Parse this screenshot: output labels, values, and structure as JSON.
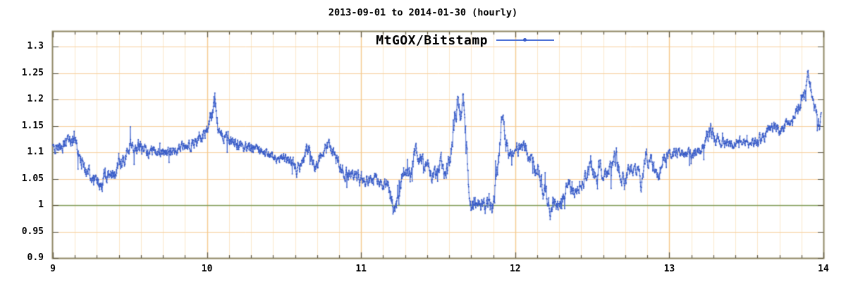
{
  "title": "2013-09-01 to 2014-01-30 (hourly)",
  "legend": {
    "label": "MtGOX/Bitstamp"
  },
  "colors": {
    "series_line": "#3e63cf",
    "series_point": "#3457c4",
    "grid_minor": "#fbe7ca",
    "grid_major_h": "#f7d09e",
    "grid_major_v": "#f5c98c",
    "baseline_green": "#86a05e",
    "border": "#8e8663",
    "tick_mark": "#5a523c",
    "text": "#000000",
    "background": "#ffffff"
  },
  "chart_data": {
    "type": "line",
    "title": "2013-09-01 to 2014-01-30 (hourly)",
    "series": [
      {
        "name": "MtGOX/Bitstamp",
        "style": "linespoints",
        "color": "#3e63cf"
      }
    ],
    "sampling": "hourly ratio MtGOX/Bitstamp; rendered from anchor points below plus small deterministic hourly jitter",
    "x_axis": {
      "unit": "month number (9=Sep 2013 ... 14=Feb 2014)",
      "min": 9,
      "max": 14,
      "major_ticks": [
        9,
        10,
        11,
        12,
        13,
        14
      ],
      "tick_labels": [
        "9",
        "10",
        "11",
        "12",
        "13",
        "14"
      ],
      "minor_divisions": 7,
      "grid": true
    },
    "y_axis": {
      "min": 0.9,
      "max": 1.328,
      "tick_step": 0.05,
      "major_ticks": [
        0.9,
        0.95,
        1.0,
        1.05,
        1.1,
        1.15,
        1.2,
        1.25,
        1.3
      ],
      "tick_labels": [
        "0.9",
        "0.95",
        "1",
        "1.05",
        "1.1",
        "1.15",
        "1.2",
        "1.25",
        "1.3"
      ],
      "grid": true,
      "baseline": 1.0
    },
    "legend_position": "top-center-inside",
    "anchors": [
      [
        9.0,
        1.113,
        0.009
      ],
      [
        9.03,
        1.108,
        0.009
      ],
      [
        9.06,
        1.112,
        0.01
      ],
      [
        9.09,
        1.118,
        0.01
      ],
      [
        9.12,
        1.121,
        0.011
      ],
      [
        9.14,
        1.124,
        0.01
      ],
      [
        9.16,
        1.108,
        0.01
      ],
      [
        9.18,
        1.092,
        0.011
      ],
      [
        9.2,
        1.072,
        0.012
      ],
      [
        9.23,
        1.062,
        0.012
      ],
      [
        9.26,
        1.052,
        0.012
      ],
      [
        9.29,
        1.046,
        0.013
      ],
      [
        9.32,
        1.038,
        0.015
      ],
      [
        9.34,
        1.052,
        0.014
      ],
      [
        9.36,
        1.062,
        0.012
      ],
      [
        9.39,
        1.054,
        0.012
      ],
      [
        9.41,
        1.052,
        0.012
      ],
      [
        9.43,
        1.08,
        0.015
      ],
      [
        9.45,
        1.07,
        0.012
      ],
      [
        9.47,
        1.09,
        0.012
      ],
      [
        9.5,
        1.108,
        0.012
      ],
      [
        9.52,
        1.108,
        0.011
      ],
      [
        9.54,
        1.11,
        0.012
      ],
      [
        9.56,
        1.112,
        0.011
      ],
      [
        9.59,
        1.103,
        0.01
      ],
      [
        9.62,
        1.1,
        0.009
      ],
      [
        9.65,
        1.103,
        0.008
      ],
      [
        9.68,
        1.101,
        0.008
      ],
      [
        9.71,
        1.1,
        0.008
      ],
      [
        9.74,
        1.098,
        0.008
      ],
      [
        9.77,
        1.101,
        0.008
      ],
      [
        9.8,
        1.104,
        0.008
      ],
      [
        9.83,
        1.107,
        0.008
      ],
      [
        9.86,
        1.11,
        0.009
      ],
      [
        9.89,
        1.112,
        0.009
      ],
      [
        9.92,
        1.12,
        0.01
      ],
      [
        9.95,
        1.129,
        0.01
      ],
      [
        9.98,
        1.137,
        0.01
      ],
      [
        10.01,
        1.145,
        0.011
      ],
      [
        10.035,
        1.168,
        0.018
      ],
      [
        10.05,
        1.205,
        0.01
      ],
      [
        10.065,
        1.165,
        0.014
      ],
      [
        10.08,
        1.138,
        0.012
      ],
      [
        10.11,
        1.131,
        0.01
      ],
      [
        10.14,
        1.121,
        0.01
      ],
      [
        10.17,
        1.123,
        0.01
      ],
      [
        10.2,
        1.116,
        0.01
      ],
      [
        10.24,
        1.111,
        0.009
      ],
      [
        10.28,
        1.108,
        0.009
      ],
      [
        10.32,
        1.105,
        0.008
      ],
      [
        10.36,
        1.102,
        0.008
      ],
      [
        10.4,
        1.097,
        0.008
      ],
      [
        10.44,
        1.093,
        0.008
      ],
      [
        10.48,
        1.088,
        0.008
      ],
      [
        10.52,
        1.084,
        0.009
      ],
      [
        10.55,
        1.08,
        0.01
      ],
      [
        10.58,
        1.068,
        0.012
      ],
      [
        10.61,
        1.08,
        0.012
      ],
      [
        10.635,
        1.095,
        0.011
      ],
      [
        10.66,
        1.112,
        0.01
      ],
      [
        10.68,
        1.085,
        0.012
      ],
      [
        10.7,
        1.067,
        0.012
      ],
      [
        10.73,
        1.08,
        0.012
      ],
      [
        10.76,
        1.098,
        0.012
      ],
      [
        10.785,
        1.113,
        0.011
      ],
      [
        10.81,
        1.105,
        0.012
      ],
      [
        10.84,
        1.087,
        0.012
      ],
      [
        10.87,
        1.071,
        0.011
      ],
      [
        10.9,
        1.061,
        0.01
      ],
      [
        10.94,
        1.056,
        0.01
      ],
      [
        10.98,
        1.054,
        0.01
      ],
      [
        11.02,
        1.051,
        0.01
      ],
      [
        11.06,
        1.049,
        0.01
      ],
      [
        11.1,
        1.049,
        0.01
      ],
      [
        11.14,
        1.045,
        0.01
      ],
      [
        11.17,
        1.036,
        0.012
      ],
      [
        11.195,
        1.01,
        0.015
      ],
      [
        11.215,
        0.984,
        0.012
      ],
      [
        11.235,
        1.018,
        0.016
      ],
      [
        11.26,
        1.048,
        0.014
      ],
      [
        11.28,
        1.066,
        0.012
      ],
      [
        11.305,
        1.06,
        0.012
      ],
      [
        11.33,
        1.076,
        0.013
      ],
      [
        11.35,
        1.096,
        0.014
      ],
      [
        11.37,
        1.1,
        0.012
      ],
      [
        11.39,
        1.09,
        0.012
      ],
      [
        11.415,
        1.079,
        0.012
      ],
      [
        11.44,
        1.071,
        0.012
      ],
      [
        11.46,
        1.058,
        0.012
      ],
      [
        11.48,
        1.054,
        0.012
      ],
      [
        11.5,
        1.066,
        0.012
      ],
      [
        11.52,
        1.078,
        0.012
      ],
      [
        11.54,
        1.058,
        0.013
      ],
      [
        11.56,
        1.07,
        0.014
      ],
      [
        11.58,
        1.098,
        0.018
      ],
      [
        11.6,
        1.148,
        0.022
      ],
      [
        11.615,
        1.18,
        0.02
      ],
      [
        11.63,
        1.2,
        0.013
      ],
      [
        11.645,
        1.17,
        0.018
      ],
      [
        11.66,
        1.2,
        0.013
      ],
      [
        11.67,
        1.183,
        0.018
      ],
      [
        11.68,
        1.12,
        0.026
      ],
      [
        11.695,
        1.042,
        0.022
      ],
      [
        11.71,
        1.008,
        0.016
      ],
      [
        11.73,
        1.0,
        0.014
      ],
      [
        11.75,
        1.016,
        0.014
      ],
      [
        11.77,
        0.994,
        0.013
      ],
      [
        11.79,
        1.0,
        0.013
      ],
      [
        11.81,
        0.988,
        0.012
      ],
      [
        11.83,
        1.007,
        0.013
      ],
      [
        11.85,
        0.996,
        0.012
      ],
      [
        11.865,
        1.016,
        0.013
      ],
      [
        11.88,
        1.058,
        0.015
      ],
      [
        11.895,
        1.092,
        0.015
      ],
      [
        11.91,
        1.16,
        0.018
      ],
      [
        11.92,
        1.183,
        0.011
      ],
      [
        11.935,
        1.128,
        0.018
      ],
      [
        11.95,
        1.11,
        0.013
      ],
      [
        11.975,
        1.098,
        0.012
      ],
      [
        12.0,
        1.11,
        0.012
      ],
      [
        12.03,
        1.103,
        0.011
      ],
      [
        12.06,
        1.11,
        0.011
      ],
      [
        12.09,
        1.093,
        0.011
      ],
      [
        12.12,
        1.076,
        0.013
      ],
      [
        12.15,
        1.066,
        0.013
      ],
      [
        12.18,
        1.034,
        0.015
      ],
      [
        12.21,
        1.004,
        0.015
      ],
      [
        12.235,
        0.986,
        0.013
      ],
      [
        12.26,
        1.004,
        0.015
      ],
      [
        12.28,
        0.994,
        0.013
      ],
      [
        12.3,
        1.004,
        0.013
      ],
      [
        12.325,
        1.026,
        0.012
      ],
      [
        12.35,
        1.034,
        0.011
      ],
      [
        12.38,
        1.029,
        0.012
      ],
      [
        12.41,
        1.031,
        0.013
      ],
      [
        12.44,
        1.046,
        0.012
      ],
      [
        12.47,
        1.06,
        0.013
      ],
      [
        12.49,
        1.082,
        0.018
      ],
      [
        12.52,
        1.056,
        0.013
      ],
      [
        12.55,
        1.07,
        0.015
      ],
      [
        12.575,
        1.062,
        0.012
      ],
      [
        12.6,
        1.068,
        0.012
      ],
      [
        12.63,
        1.073,
        0.013
      ],
      [
        12.655,
        1.09,
        0.018
      ],
      [
        12.68,
        1.053,
        0.013
      ],
      [
        12.71,
        1.04,
        0.013
      ],
      [
        12.74,
        1.068,
        0.013
      ],
      [
        12.77,
        1.07,
        0.011
      ],
      [
        12.8,
        1.062,
        0.011
      ],
      [
        12.82,
        1.042,
        0.013
      ],
      [
        12.85,
        1.095,
        0.013
      ],
      [
        12.88,
        1.083,
        0.011
      ],
      [
        12.91,
        1.057,
        0.011
      ],
      [
        12.935,
        1.052,
        0.011
      ],
      [
        12.96,
        1.092,
        0.011
      ],
      [
        12.99,
        1.098,
        0.009
      ],
      [
        13.03,
        1.096,
        0.009
      ],
      [
        13.07,
        1.099,
        0.008
      ],
      [
        13.11,
        1.092,
        0.008
      ],
      [
        13.15,
        1.097,
        0.008
      ],
      [
        13.18,
        1.104,
        0.009
      ],
      [
        13.21,
        1.11,
        0.009
      ],
      [
        13.24,
        1.132,
        0.013
      ],
      [
        13.27,
        1.142,
        0.013
      ],
      [
        13.3,
        1.121,
        0.011
      ],
      [
        13.33,
        1.117,
        0.009
      ],
      [
        13.36,
        1.114,
        0.008
      ],
      [
        13.4,
        1.118,
        0.008
      ],
      [
        13.44,
        1.121,
        0.008
      ],
      [
        13.48,
        1.12,
        0.008
      ],
      [
        13.52,
        1.115,
        0.008
      ],
      [
        13.56,
        1.119,
        0.008
      ],
      [
        13.6,
        1.127,
        0.009
      ],
      [
        13.63,
        1.138,
        0.009
      ],
      [
        13.66,
        1.151,
        0.009
      ],
      [
        13.69,
        1.148,
        0.009
      ],
      [
        13.715,
        1.14,
        0.009
      ],
      [
        13.74,
        1.147,
        0.009
      ],
      [
        13.76,
        1.153,
        0.009
      ],
      [
        13.785,
        1.16,
        0.01
      ],
      [
        13.81,
        1.174,
        0.011
      ],
      [
        13.83,
        1.183,
        0.011
      ],
      [
        13.85,
        1.192,
        0.011
      ],
      [
        13.87,
        1.208,
        0.011
      ],
      [
        13.89,
        1.23,
        0.01
      ],
      [
        13.9,
        1.258,
        0.008
      ],
      [
        13.91,
        1.238,
        0.01
      ],
      [
        13.925,
        1.205,
        0.011
      ],
      [
        13.94,
        1.185,
        0.011
      ],
      [
        13.955,
        1.172,
        0.01
      ],
      [
        13.965,
        1.157,
        0.01
      ],
      [
        13.975,
        1.15,
        0.009
      ],
      [
        13.985,
        1.168,
        0.01
      ]
    ]
  }
}
